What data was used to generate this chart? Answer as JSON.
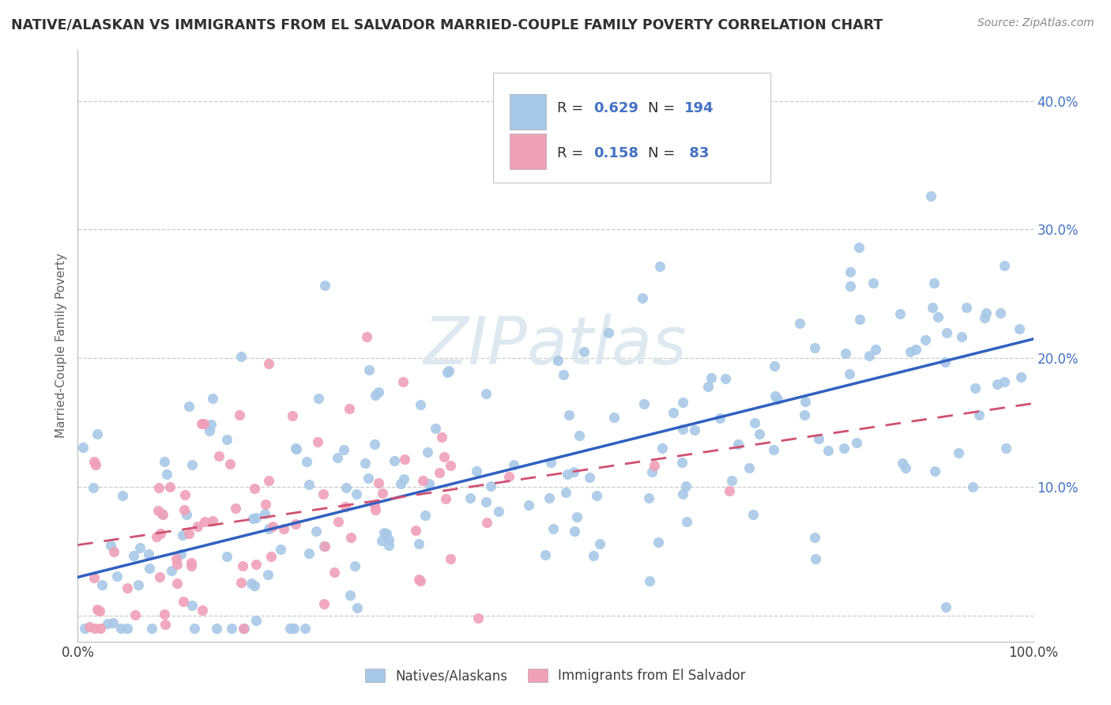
{
  "title": "NATIVE/ALASKAN VS IMMIGRANTS FROM EL SALVADOR MARRIED-COUPLE FAMILY POVERTY CORRELATION CHART",
  "source": "Source: ZipAtlas.com",
  "ylabel": "Married-Couple Family Poverty",
  "xlim": [
    0.0,
    1.0
  ],
  "ylim": [
    -0.02,
    0.44
  ],
  "xticks": [
    0.0,
    0.1,
    0.2,
    0.3,
    0.4,
    0.5,
    0.6,
    0.7,
    0.8,
    0.9,
    1.0
  ],
  "xtick_labels": [
    "0.0%",
    "",
    "",
    "",
    "",
    "",
    "",
    "",
    "",
    "",
    "100.0%"
  ],
  "yticks": [
    0.0,
    0.1,
    0.2,
    0.3,
    0.4
  ],
  "ytick_labels": [
    "",
    "10.0%",
    "20.0%",
    "30.0%",
    "40.0%"
  ],
  "blue_color": "#a8c8e8",
  "pink_color": "#f0a0b8",
  "line_blue": "#3060c0",
  "line_pink": "#d05070",
  "watermark_color": "#dde8f0",
  "background_color": "#ffffff",
  "grid_color": "#cccccc",
  "title_color": "#303030",
  "axis_label_color": "#606060",
  "tick_label_color_y": "#4472c4",
  "tick_label_color_x": "#404040",
  "legend_text_color": "#303030",
  "legend_value_color": "#4472c4",
  "blue_scatter_seed": 42,
  "pink_scatter_seed": 7,
  "blue_N": 194,
  "pink_N": 83,
  "blue_R": 0.629,
  "pink_R": 0.158,
  "blue_line_x0": 0.0,
  "blue_line_y0": 0.03,
  "blue_line_x1": 1.0,
  "blue_line_y1": 0.215,
  "pink_line_x0": 0.0,
  "pink_line_y0": 0.055,
  "pink_line_x1": 1.0,
  "pink_line_y1": 0.165
}
